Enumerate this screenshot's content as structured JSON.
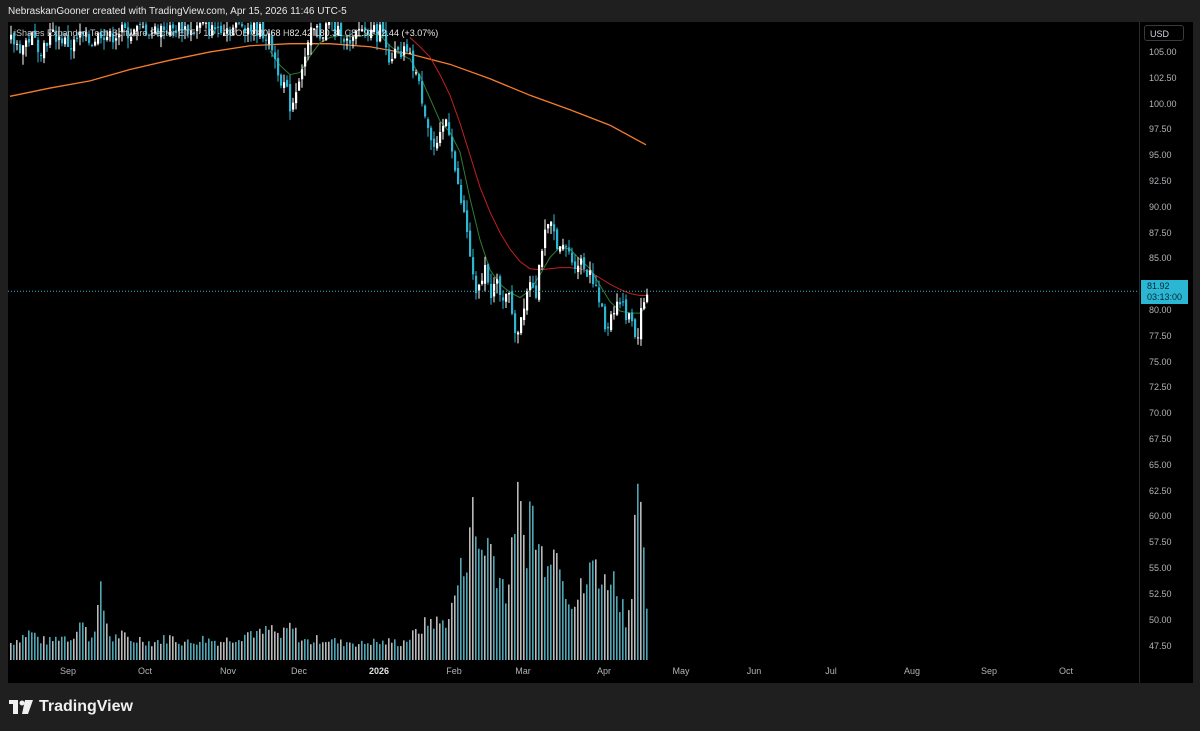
{
  "credit": "NebraskanGooner created with TradingView.com, Apr 15, 2026 11:46 UTC-5",
  "legend": {
    "symbol": "iShares Expanded Tech-Software Sector ETF · 1D · CBOE",
    "o_label": "O",
    "open": "80.68",
    "h_label": "H",
    "high": "82.42",
    "l_label": "L",
    "low": "80.31",
    "c_label": "C",
    "close": "81.92",
    "change": "+2.44 (+3.07%)"
  },
  "price_scale": {
    "currency": "USD",
    "ticks": [
      "105.00",
      "102.50",
      "100.00",
      "97.50",
      "95.00",
      "92.50",
      "90.00",
      "87.50",
      "85.00",
      "82.50",
      "80.00",
      "77.50",
      "75.00",
      "72.50",
      "70.00",
      "67.50",
      "65.00",
      "62.50",
      "60.00",
      "57.50",
      "55.00",
      "52.50",
      "50.00",
      "47.50"
    ],
    "last_price": "81.92",
    "countdown": "03:13:00"
  },
  "time_axis": {
    "labels": [
      "Sep",
      "Oct",
      "Nov",
      "Dec",
      "2026",
      "Feb",
      "Mar",
      "Apr",
      "May",
      "Jun",
      "Jul",
      "Aug",
      "Sep",
      "Oct"
    ]
  },
  "brand": "TradingView",
  "colors": {
    "background": "#000000",
    "up_candle": "#ffffff",
    "down_candle": "#2bb7d4",
    "sma_long": "#f57c2c",
    "sma_mid": "#c21f1f",
    "sma_short": "#2e7d32",
    "last_price_line": "#2bb7d4"
  },
  "chart_data": {
    "type": "candlestick",
    "interval": "1D",
    "ylim": [
      46.0,
      108.0
    ],
    "last_price": 81.92,
    "ohlc_path": [
      [
        0,
        106.2
      ],
      [
        10,
        105.5
      ],
      [
        20,
        106.6
      ],
      [
        30,
        105.4
      ],
      [
        40,
        106.8
      ],
      [
        50,
        106.4
      ],
      [
        60,
        105.6
      ],
      [
        70,
        106.7
      ],
      [
        80,
        106.0
      ],
      [
        90,
        107.0
      ],
      [
        100,
        106.5
      ],
      [
        110,
        107.2
      ],
      [
        120,
        106.9
      ],
      [
        130,
        107.4
      ],
      [
        140,
        107.0
      ],
      [
        150,
        107.5
      ],
      [
        160,
        107.2
      ],
      [
        170,
        107.6
      ],
      [
        180,
        107.1
      ],
      [
        190,
        107.7
      ],
      [
        200,
        107.2
      ],
      [
        210,
        107.6
      ],
      [
        220,
        107.3
      ],
      [
        230,
        107.8
      ],
      [
        240,
        107.4
      ],
      [
        250,
        107.2
      ],
      [
        260,
        106.0
      ],
      [
        265,
        104.0
      ],
      [
        270,
        102.5
      ],
      [
        275,
        101.5
      ],
      [
        280,
        99.5
      ],
      [
        284,
        101.2
      ],
      [
        290,
        103.5
      ],
      [
        295,
        104.8
      ],
      [
        300,
        106.8
      ],
      [
        305,
        107.4
      ],
      [
        310,
        106.6
      ],
      [
        315,
        107.6
      ],
      [
        320,
        107.9
      ],
      [
        325,
        106.8
      ],
      [
        330,
        107.3
      ],
      [
        335,
        106.2
      ],
      [
        340,
        105.4
      ],
      [
        345,
        106.8
      ],
      [
        350,
        107.6
      ],
      [
        355,
        107.0
      ],
      [
        360,
        107.8
      ],
      [
        365,
        106.6
      ],
      [
        370,
        107.5
      ],
      [
        375,
        106.2
      ],
      [
        380,
        103.5
      ],
      [
        385,
        105.4
      ],
      [
        390,
        104.2
      ],
      [
        395,
        105.6
      ],
      [
        400,
        104.2
      ],
      [
        405,
        103.0
      ],
      [
        410,
        101.0
      ],
      [
        415,
        99.0
      ],
      [
        420,
        96.5
      ],
      [
        425,
        95.3
      ],
      [
        430,
        97.0
      ],
      [
        435,
        98.6
      ],
      [
        440,
        96.8
      ],
      [
        445,
        92.8
      ],
      [
        450,
        90.5
      ],
      [
        455,
        88.5
      ],
      [
        460,
        84.5
      ],
      [
        465,
        81.2
      ],
      [
        470,
        82.8
      ],
      [
        475,
        84.5
      ],
      [
        480,
        81.8
      ],
      [
        485,
        82.9
      ],
      [
        490,
        80.8
      ],
      [
        495,
        82.2
      ],
      [
        500,
        80.6
      ],
      [
        505,
        77.6
      ],
      [
        510,
        79.5
      ],
      [
        515,
        81.8
      ],
      [
        520,
        83.4
      ],
      [
        525,
        81.9
      ],
      [
        530,
        86.0
      ],
      [
        535,
        87.6
      ],
      [
        540,
        88.2
      ],
      [
        545,
        87.0
      ],
      [
        550,
        85.6
      ],
      [
        555,
        86.2
      ],
      [
        560,
        85.0
      ],
      [
        565,
        84.6
      ],
      [
        570,
        84.9
      ],
      [
        575,
        83.8
      ],
      [
        580,
        84.1
      ],
      [
        585,
        81.8
      ],
      [
        590,
        80.4
      ],
      [
        595,
        77.9
      ],
      [
        600,
        79.8
      ],
      [
        605,
        80.7
      ],
      [
        610,
        80.9
      ],
      [
        615,
        79.6
      ],
      [
        620,
        80.2
      ],
      [
        625,
        76.7
      ],
      [
        630,
        79.9
      ],
      [
        636,
        81.9
      ]
    ],
    "moving_averages": [
      {
        "role": "long",
        "color": "#f57c2c",
        "x": [
          0,
          40,
          80,
          120,
          160,
          200,
          240,
          280,
          320,
          360,
          400,
          440,
          480,
          520,
          560,
          600,
          636
        ],
        "y": [
          100.8,
          101.6,
          102.3,
          103.4,
          104.3,
          105.1,
          105.7,
          105.9,
          105.9,
          105.6,
          104.9,
          103.9,
          102.5,
          100.9,
          99.5,
          98.0,
          96.1
        ]
      },
      {
        "role": "mid",
        "color": "#c21f1f",
        "x": [
          400,
          410,
          420,
          430,
          440,
          450,
          460,
          470,
          480,
          490,
          500,
          510,
          520,
          530,
          540,
          550,
          560,
          570,
          580,
          590,
          600,
          610,
          620,
          630,
          636
        ],
        "y": [
          106.5,
          105.6,
          104.6,
          102.9,
          100.9,
          98.2,
          95.1,
          92.0,
          89.6,
          87.6,
          86.0,
          84.8,
          84.1,
          84.0,
          84.1,
          84.2,
          84.2,
          84.1,
          83.8,
          83.2,
          82.6,
          82.1,
          81.7,
          81.5,
          81.5
        ]
      },
      {
        "role": "short",
        "color": "#2e7d32",
        "x": [
          260,
          270,
          280,
          290,
          300,
          310,
          320,
          330,
          340,
          350,
          360,
          370,
          380,
          390,
          400,
          410,
          420,
          430,
          440,
          450,
          460,
          470,
          480,
          490,
          500,
          510,
          520,
          530,
          540,
          550,
          560,
          570,
          580,
          590,
          600,
          610,
          620,
          630,
          636
        ],
        "y": [
          105.2,
          103.8,
          102.9,
          103.1,
          104.7,
          106.0,
          106.5,
          106.7,
          106.6,
          106.6,
          106.9,
          106.7,
          105.7,
          104.9,
          104.4,
          102.8,
          100.6,
          98.4,
          97.3,
          95.4,
          90.9,
          86.9,
          84.0,
          82.6,
          81.8,
          81.3,
          82.0,
          83.5,
          85.2,
          86.2,
          86.0,
          85.0,
          84.1,
          82.5,
          80.9,
          80.0,
          79.8,
          79.8,
          80.4
        ]
      }
    ],
    "volume_relative": [
      [
        0,
        0.12
      ],
      [
        10,
        0.16
      ],
      [
        20,
        0.2
      ],
      [
        30,
        0.14
      ],
      [
        40,
        0.13
      ],
      [
        50,
        0.17
      ],
      [
        60,
        0.15
      ],
      [
        70,
        0.28
      ],
      [
        80,
        0.13
      ],
      [
        90,
        0.45
      ],
      [
        100,
        0.14
      ],
      [
        110,
        0.18
      ],
      [
        120,
        0.13
      ],
      [
        130,
        0.15
      ],
      [
        140,
        0.12
      ],
      [
        150,
        0.14
      ],
      [
        160,
        0.16
      ],
      [
        170,
        0.13
      ],
      [
        180,
        0.12
      ],
      [
        190,
        0.15
      ],
      [
        200,
        0.14
      ],
      [
        210,
        0.13
      ],
      [
        220,
        0.15
      ],
      [
        230,
        0.17
      ],
      [
        240,
        0.2
      ],
      [
        250,
        0.18
      ],
      [
        260,
        0.22
      ],
      [
        270,
        0.16
      ],
      [
        280,
        0.24
      ],
      [
        290,
        0.14
      ],
      [
        300,
        0.13
      ],
      [
        310,
        0.15
      ],
      [
        320,
        0.14
      ],
      [
        330,
        0.12
      ],
      [
        340,
        0.13
      ],
      [
        350,
        0.11
      ],
      [
        360,
        0.13
      ],
      [
        370,
        0.12
      ],
      [
        380,
        0.13
      ],
      [
        390,
        0.12
      ],
      [
        400,
        0.16
      ],
      [
        410,
        0.22
      ],
      [
        420,
        0.28
      ],
      [
        430,
        0.25
      ],
      [
        440,
        0.32
      ],
      [
        445,
        0.5
      ],
      [
        450,
        0.6
      ],
      [
        455,
        0.72
      ],
      [
        460,
        1.08
      ],
      [
        465,
        0.85
      ],
      [
        470,
        0.76
      ],
      [
        475,
        0.86
      ],
      [
        480,
        0.78
      ],
      [
        485,
        0.7
      ],
      [
        490,
        0.56
      ],
      [
        495,
        0.5
      ],
      [
        500,
        0.58
      ],
      [
        505,
        1.18
      ],
      [
        510,
        0.95
      ],
      [
        515,
        0.78
      ],
      [
        520,
        1.12
      ],
      [
        525,
        0.86
      ],
      [
        530,
        0.72
      ],
      [
        535,
        0.78
      ],
      [
        540,
        0.86
      ],
      [
        545,
        0.72
      ],
      [
        550,
        0.82
      ],
      [
        555,
        0.52
      ],
      [
        560,
        0.46
      ],
      [
        565,
        0.4
      ],
      [
        570,
        0.48
      ],
      [
        575,
        0.52
      ],
      [
        580,
        0.62
      ],
      [
        585,
        0.72
      ],
      [
        590,
        0.56
      ],
      [
        595,
        0.52
      ],
      [
        600,
        0.66
      ],
      [
        605,
        0.48
      ],
      [
        610,
        0.44
      ],
      [
        615,
        0.3
      ],
      [
        620,
        0.4
      ],
      [
        625,
        1.22
      ],
      [
        630,
        0.9
      ],
      [
        636,
        0.4
      ]
    ]
  }
}
